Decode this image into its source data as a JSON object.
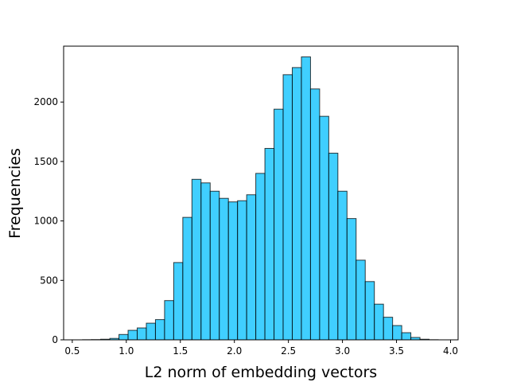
{
  "chart_data": {
    "type": "bar",
    "subtype": "histogram",
    "title": "",
    "xlabel": "L2 norm of embedding vectors",
    "ylabel": "Frequencies",
    "xlim": [
      0.42,
      4.07
    ],
    "ylim": [
      0,
      2470
    ],
    "grid": false,
    "bar_color": "#00BFFF",
    "bar_opacity": 0.75,
    "edge_color": "#000000",
    "x_ticks": [
      0.5,
      1.0,
      1.5,
      2.0,
      2.5,
      3.0,
      3.5,
      4.0
    ],
    "x_tick_labels": [
      "0.5",
      "1.0",
      "1.5",
      "2.0",
      "2.5",
      "3.0",
      "3.5",
      "4.0"
    ],
    "y_ticks": [
      0,
      500,
      1000,
      1500,
      2000
    ],
    "y_tick_labels": [
      "0",
      "500",
      "1000",
      "1500",
      "2000"
    ],
    "bin_edges": [
      0.51,
      0.5944,
      0.6788,
      0.7632,
      0.8476,
      0.932,
      1.0164,
      1.1008,
      1.1852,
      1.2696,
      1.354,
      1.4384,
      1.5228,
      1.6072,
      1.6916,
      1.776,
      1.8604,
      1.9448,
      2.0292,
      2.1136,
      2.198,
      2.2824,
      2.3668,
      2.4512,
      2.5356,
      2.62,
      2.7044,
      2.7888,
      2.8732,
      2.9576,
      3.042,
      3.1264,
      3.2108,
      3.2952,
      3.3796,
      3.464,
      3.5484,
      3.6328,
      3.7172,
      3.8016,
      3.886
    ],
    "counts": [
      0,
      1,
      2,
      5,
      12,
      45,
      80,
      100,
      140,
      170,
      330,
      650,
      1030,
      1350,
      1320,
      1250,
      1190,
      1160,
      1170,
      1220,
      1400,
      1610,
      1940,
      2230,
      2290,
      2380,
      2110,
      1880,
      1570,
      1250,
      1020,
      670,
      490,
      300,
      190,
      120,
      60,
      20,
      5,
      1
    ]
  }
}
